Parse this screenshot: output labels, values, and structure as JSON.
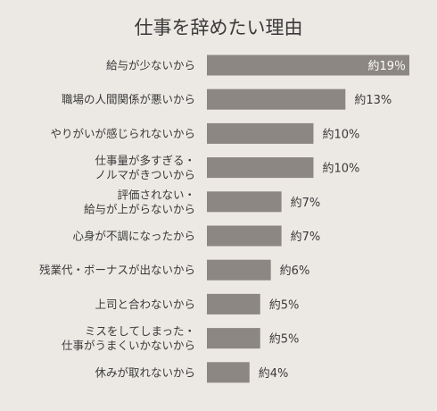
{
  "chart_data": {
    "type": "bar",
    "orientation": "horizontal",
    "title": "仕事を辞めたい理由",
    "categories": [
      [
        "給与が少ないから"
      ],
      [
        "職場の人間関係が悪いから"
      ],
      [
        "やりがいが感じられないから"
      ],
      [
        "仕事量が多すぎる・",
        "ノルマがきついから"
      ],
      [
        "評価されない・",
        "給与が上がらないから"
      ],
      [
        "心身が不調になったから"
      ],
      [
        "残業代・ボーナスが出ないから"
      ],
      [
        "上司と合わないから"
      ],
      [
        "ミスをしてしまった・",
        "仕事がうまくいかないから"
      ],
      [
        "休みが取れないから"
      ]
    ],
    "values": [
      19,
      13,
      10,
      10,
      7,
      7,
      6,
      5,
      5,
      4
    ],
    "value_labels": [
      "約19％",
      "約13%",
      "約10%",
      "約10%",
      "約7%",
      "約7%",
      "約6%",
      "約5%",
      "約5%",
      "約4%"
    ],
    "bar_color": "#8c8782",
    "background_color": "#ece9e5",
    "inside_label_color": "#ffffff",
    "outside_label_color": "#3a3a3a"
  }
}
